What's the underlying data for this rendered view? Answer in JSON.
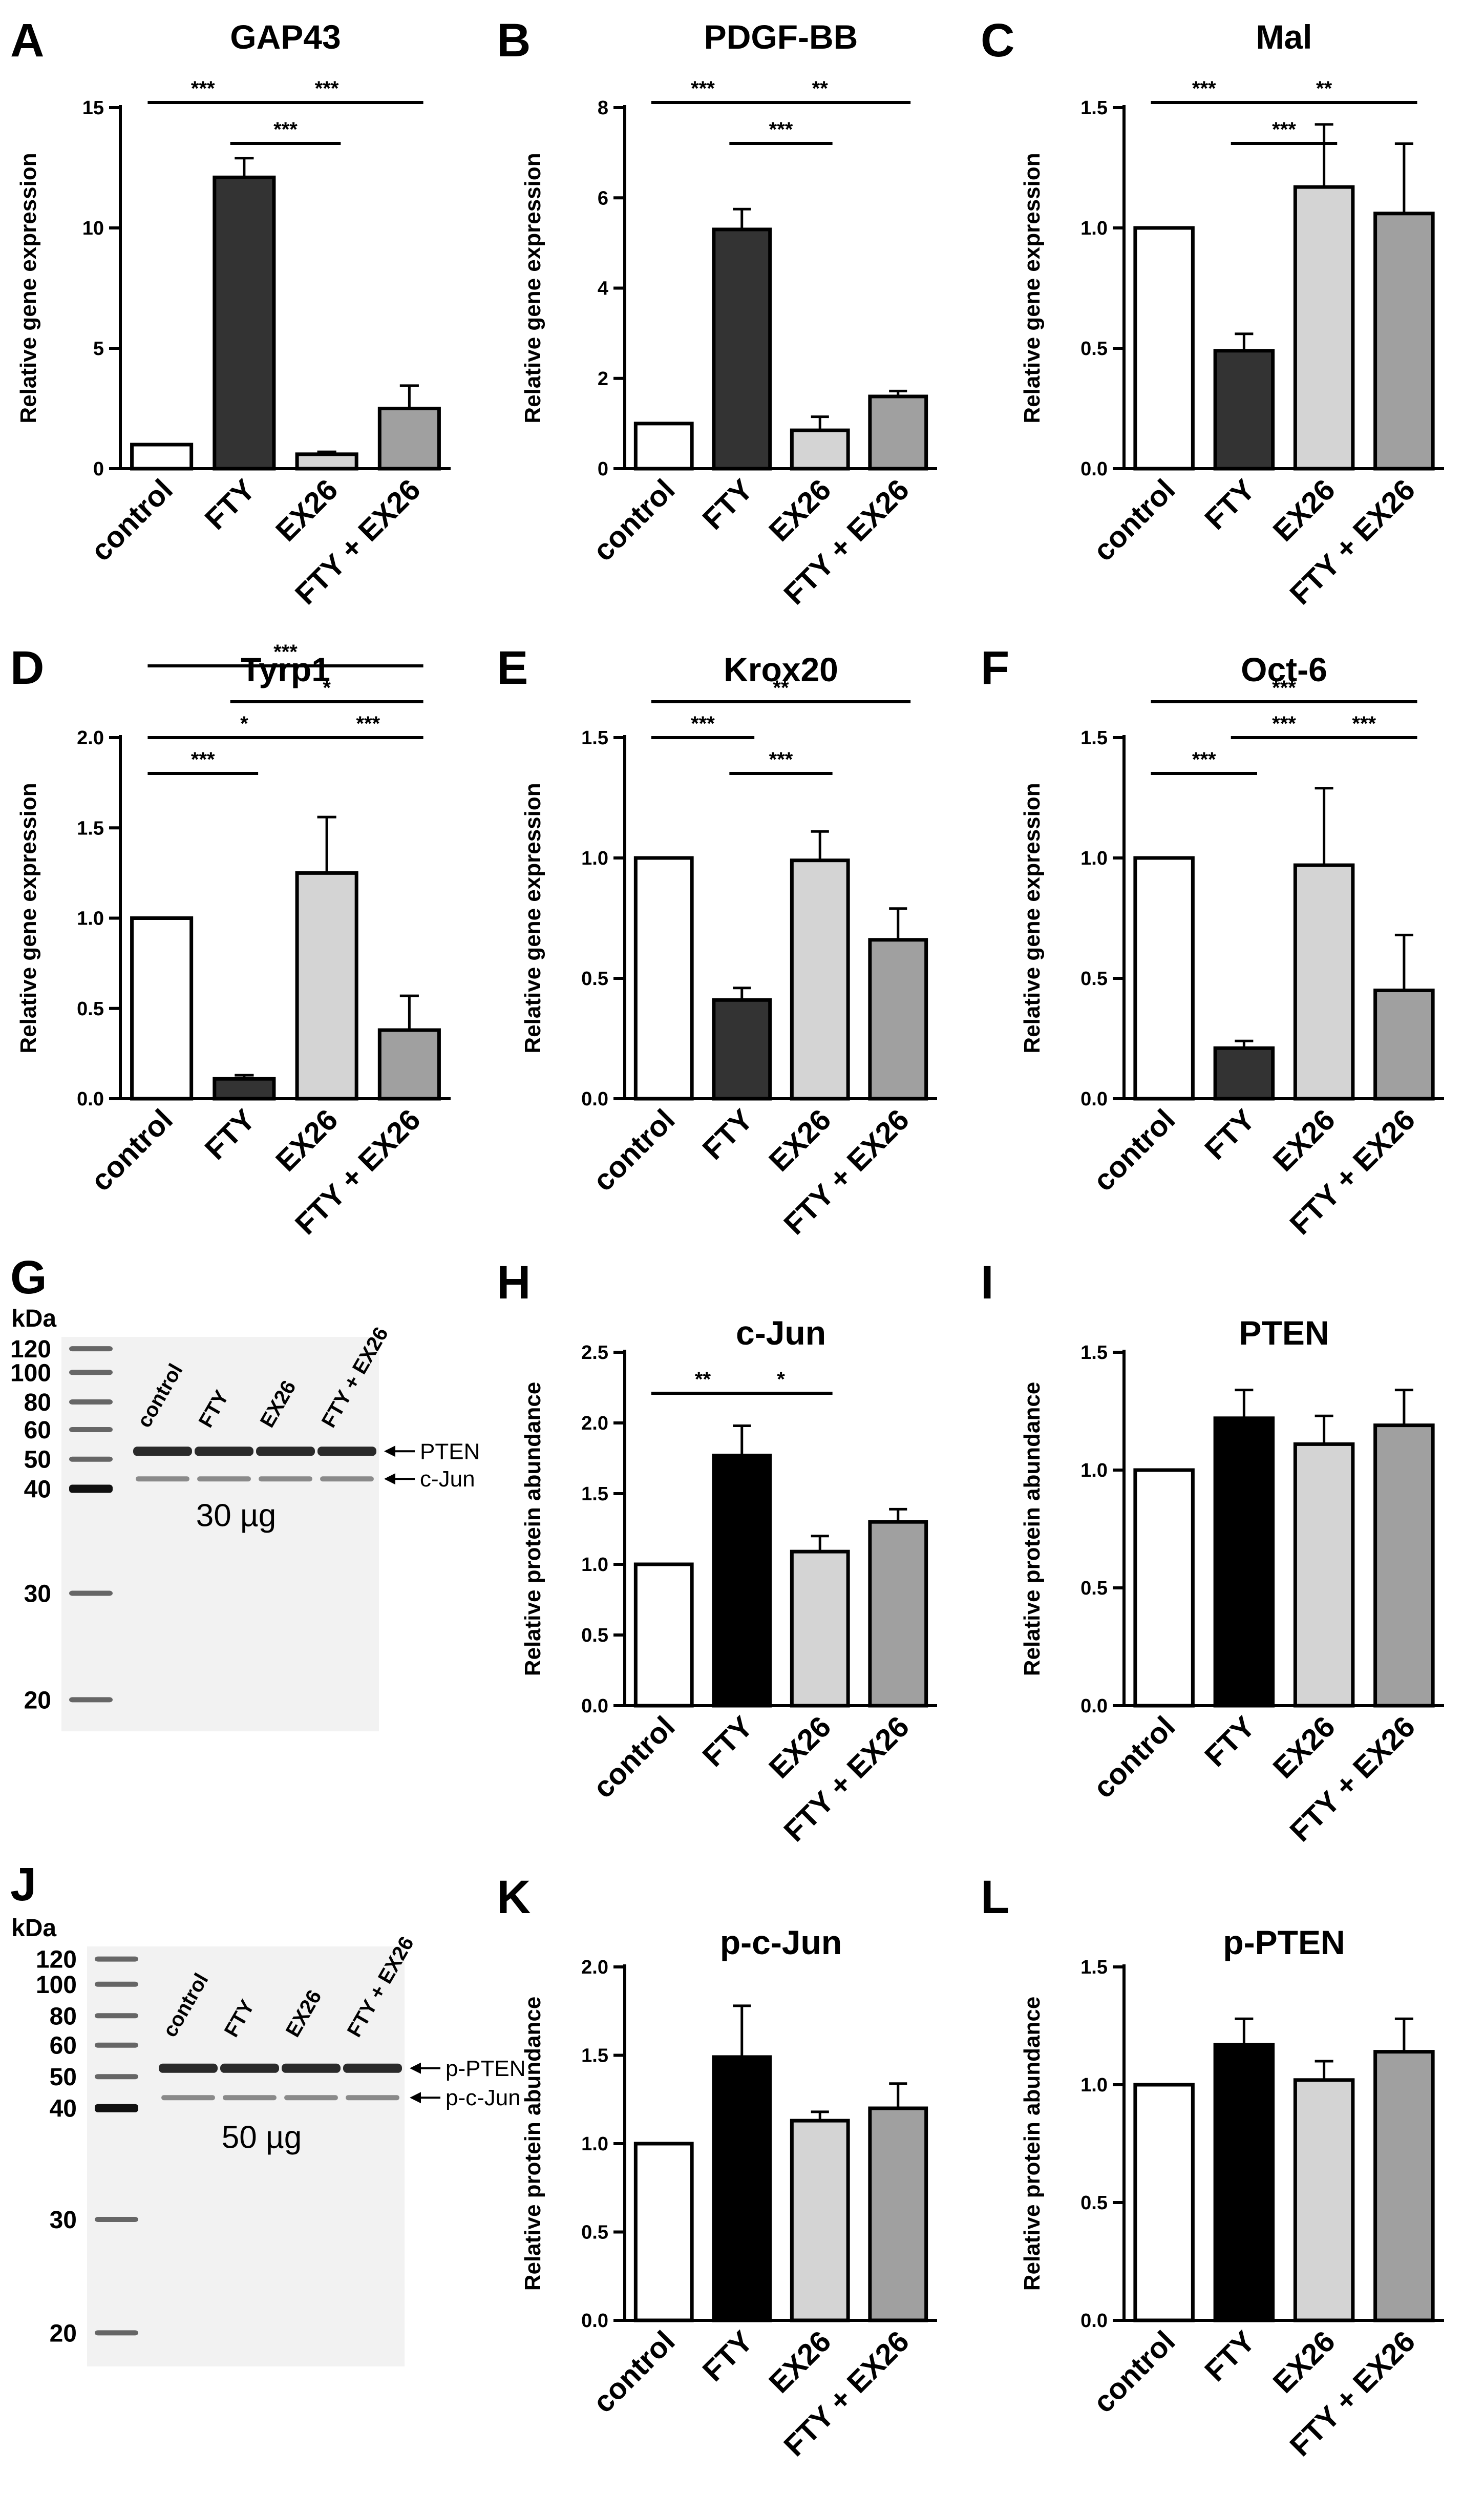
{
  "colors": {
    "control": "#ffffff",
    "FTY_gene": "#333333",
    "FTY_protein": "#000000",
    "EX26": "#d4d4d4",
    "FTY_EX26": "#a0a0a0",
    "stroke": "#000000"
  },
  "chart_data": [
    {
      "panel": "A",
      "type": "bar",
      "title": "GAP43",
      "ylabel": "Relative gene expression",
      "ylim": [
        0,
        15
      ],
      "yticks": [
        0,
        5,
        10,
        15
      ],
      "categories": [
        "control",
        "FTY",
        "EX26",
        "FTY + EX26"
      ],
      "values": [
        1.0,
        12.1,
        0.6,
        2.5
      ],
      "errors": [
        0,
        0.8,
        0.1,
        0.95
      ],
      "significance": [
        {
          "from": 0,
          "to": 1,
          "label": "***",
          "level": 1
        },
        {
          "from": 1,
          "to": 3,
          "label": "***",
          "level": 1
        },
        {
          "from": 1,
          "to": 2,
          "label": "***",
          "level": 0
        }
      ]
    },
    {
      "panel": "B",
      "type": "bar",
      "title": "PDGF-BB",
      "ylabel": "Relative gene expression",
      "ylim": [
        0,
        8
      ],
      "yticks": [
        0,
        2,
        4,
        6,
        8
      ],
      "categories": [
        "control",
        "FTY",
        "EX26",
        "FTY + EX26"
      ],
      "values": [
        1.0,
        5.3,
        0.85,
        1.6
      ],
      "errors": [
        0,
        0.45,
        0.3,
        0.12
      ],
      "significance": [
        {
          "from": 0,
          "to": 1,
          "label": "***",
          "level": 1
        },
        {
          "from": 1,
          "to": 3,
          "label": "**",
          "level": 1
        },
        {
          "from": 1,
          "to": 2,
          "label": "***",
          "level": 0
        }
      ]
    },
    {
      "panel": "C",
      "type": "bar",
      "title": "Mal",
      "ylabel": "Relative gene expression",
      "ylim": [
        0,
        1.5
      ],
      "yticks": [
        "0.0",
        "0.5",
        "1.0",
        "1.5"
      ],
      "categories": [
        "control",
        "FTY",
        "EX26",
        "FTY + EX26"
      ],
      "values": [
        1.0,
        0.49,
        1.17,
        1.06
      ],
      "errors": [
        0,
        0.07,
        0.26,
        0.29
      ],
      "significance": [
        {
          "from": 0,
          "to": 1,
          "label": "***",
          "level": 1
        },
        {
          "from": 1,
          "to": 3,
          "label": "**",
          "level": 1
        },
        {
          "from": 1,
          "to": 2,
          "label": "***",
          "level": 0
        }
      ]
    },
    {
      "panel": "D",
      "type": "bar",
      "title": "Tyrp1",
      "ylabel": "Relative gene expression",
      "ylim": [
        0,
        2.0
      ],
      "yticks": [
        "0.0",
        "0.5",
        "1.0",
        "1.5",
        "2.0"
      ],
      "categories": [
        "control",
        "FTY",
        "EX26",
        "FTY + EX26"
      ],
      "values": [
        1.0,
        0.11,
        1.25,
        0.38
      ],
      "errors": [
        0,
        0.02,
        0.31,
        0.19
      ],
      "significance": [
        {
          "from": 0,
          "to": 3,
          "label": "***",
          "level": 3
        },
        {
          "from": 1,
          "to": 3,
          "label": "*",
          "level": 2
        },
        {
          "from": 0,
          "to": 2,
          "label": "*",
          "level": 1
        },
        {
          "from": 2,
          "to": 3,
          "label": "***",
          "level": 1
        },
        {
          "from": 0,
          "to": 1,
          "label": "***",
          "level": 0
        }
      ]
    },
    {
      "panel": "E",
      "type": "bar",
      "title": "Krox20",
      "ylabel": "Relative gene expression",
      "ylim": [
        0,
        1.5
      ],
      "yticks": [
        "0.0",
        "0.5",
        "1.0",
        "1.5"
      ],
      "categories": [
        "control",
        "FTY",
        "EX26",
        "FTY + EX26"
      ],
      "values": [
        1.0,
        0.41,
        0.99,
        0.66
      ],
      "errors": [
        0,
        0.05,
        0.12,
        0.13
      ],
      "significance": [
        {
          "from": 0,
          "to": 3,
          "label": "**",
          "level": 2
        },
        {
          "from": 0,
          "to": 1,
          "label": "***",
          "level": 1
        },
        {
          "from": 1,
          "to": 2,
          "label": "***",
          "level": 0
        }
      ]
    },
    {
      "panel": "F",
      "type": "bar",
      "title": "Oct-6",
      "ylabel": "Relative gene expression",
      "ylim": [
        0,
        1.5
      ],
      "yticks": [
        "0.0",
        "0.5",
        "1.0",
        "1.5"
      ],
      "categories": [
        "control",
        "FTY",
        "EX26",
        "FTY + EX26"
      ],
      "values": [
        1.0,
        0.21,
        0.97,
        0.45
      ],
      "errors": [
        0,
        0.03,
        0.32,
        0.23
      ],
      "significance": [
        {
          "from": 0,
          "to": 3,
          "label": "***",
          "level": 2
        },
        {
          "from": 1,
          "to": 2,
          "label": "***",
          "level": 1
        },
        {
          "from": 2,
          "to": 3,
          "label": "***",
          "level": 1
        },
        {
          "from": 0,
          "to": 1,
          "label": "***",
          "level": 0
        }
      ]
    },
    {
      "panel": "H",
      "type": "bar",
      "title": "c-Jun",
      "ylabel": "Relative protein abundance",
      "ylim": [
        0,
        2.5
      ],
      "yticks": [
        "0.0",
        "0.5",
        "1.0",
        "1.5",
        "2.0",
        "2.5"
      ],
      "categories": [
        "control",
        "FTY",
        "EX26",
        "FTY + EX26"
      ],
      "values": [
        1.0,
        1.77,
        1.09,
        1.3
      ],
      "errors": [
        0,
        0.21,
        0.11,
        0.09
      ],
      "significance": [
        {
          "from": 0,
          "to": 1,
          "label": "**",
          "level": 0
        },
        {
          "from": 1,
          "to": 2,
          "label": "*",
          "level": 0
        }
      ]
    },
    {
      "panel": "I",
      "type": "bar",
      "title": "PTEN",
      "ylabel": "Relative protein abundance",
      "ylim": [
        0,
        1.5
      ],
      "yticks": [
        "0.0",
        "0.5",
        "1.0",
        "1.5"
      ],
      "categories": [
        "control",
        "FTY",
        "EX26",
        "FTY + EX26"
      ],
      "values": [
        1.0,
        1.22,
        1.11,
        1.19
      ],
      "errors": [
        0,
        0.12,
        0.12,
        0.15
      ],
      "significance": []
    },
    {
      "panel": "K",
      "type": "bar",
      "title": "p-c-Jun",
      "ylabel": "Relative protein abundance",
      "ylim": [
        0,
        2.0
      ],
      "yticks": [
        "0.0",
        "0.5",
        "1.0",
        "1.5",
        "2.0"
      ],
      "categories": [
        "control",
        "FTY",
        "EX26",
        "FTY + EX26"
      ],
      "values": [
        1.0,
        1.49,
        1.13,
        1.2
      ],
      "errors": [
        0,
        0.29,
        0.05,
        0.14
      ],
      "significance": []
    },
    {
      "panel": "L",
      "type": "bar",
      "title": "p-PTEN",
      "ylabel": "Relative protein abundance",
      "ylim": [
        0,
        1.5
      ],
      "yticks": [
        "0.0",
        "0.5",
        "1.0",
        "1.5"
      ],
      "categories": [
        "control",
        "FTY",
        "EX26",
        "FTY + EX26"
      ],
      "values": [
        1.0,
        1.17,
        1.02,
        1.14
      ],
      "errors": [
        0,
        0.11,
        0.08,
        0.14
      ],
      "significance": []
    }
  ],
  "blots": [
    {
      "panel": "G",
      "unit": "kDa",
      "markers": [
        "120",
        "100",
        "80",
        "60",
        "50",
        "40",
        "30",
        "20"
      ],
      "lanes": [
        "control",
        "FTY",
        "EX26",
        "FTY + EX26"
      ],
      "bands": [
        "PTEN",
        "c-Jun"
      ],
      "loading": "30 µg"
    },
    {
      "panel": "J",
      "unit": "kDa",
      "markers": [
        "120",
        "100",
        "80",
        "60",
        "50",
        "40",
        "30",
        "20"
      ],
      "lanes": [
        "control",
        "FTY",
        "EX26",
        "FTY + EX26"
      ],
      "bands": [
        "p-PTEN",
        "p-c-Jun"
      ],
      "loading": "50 µg"
    }
  ]
}
